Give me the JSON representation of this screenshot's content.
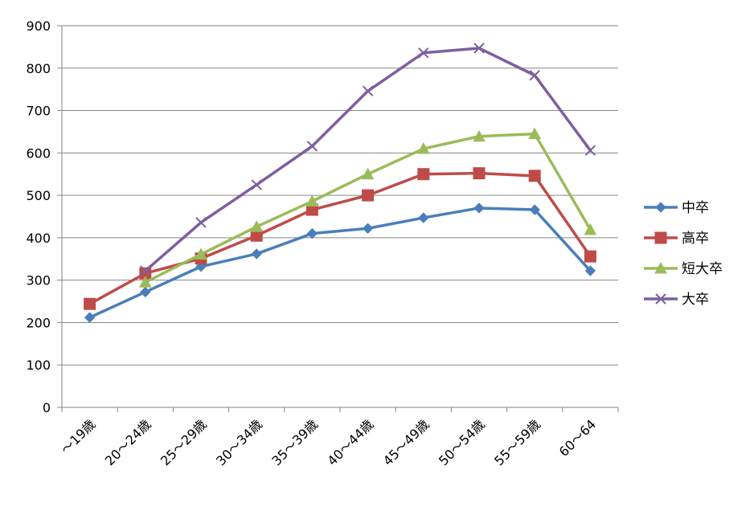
{
  "chart_data": {
    "type": "line",
    "title": "",
    "xlabel": "",
    "ylabel": "",
    "categories": [
      "～19歳",
      "20～24歳",
      "25～29歳",
      "30～34歳",
      "35～39歳",
      "40～44歳",
      "45～49歳",
      "50～54歳",
      "55～59歳",
      "60～64"
    ],
    "ylim": [
      0,
      900
    ],
    "yticks": [
      0,
      100,
      200,
      300,
      400,
      500,
      600,
      700,
      800,
      900
    ],
    "grid": "horizontal",
    "legend_position": "right",
    "series": [
      {
        "name": "中卒",
        "color": "#4A7EBB",
        "marker": "diamond",
        "values": [
          212,
          272,
          332,
          362,
          410,
          422,
          447,
          470,
          466,
          322
        ]
      },
      {
        "name": "高卒",
        "color": "#BE4B48",
        "marker": "square",
        "values": [
          244,
          316,
          351,
          405,
          466,
          500,
          550,
          552,
          546,
          356
        ]
      },
      {
        "name": "短大卒",
        "color": "#9BBB59",
        "marker": "triangle",
        "values": [
          null,
          295,
          361,
          426,
          486,
          550,
          610,
          639,
          645,
          419
        ]
      },
      {
        "name": "大卒",
        "color": "#7D5FA0",
        "marker": "x",
        "values": [
          null,
          322,
          436,
          525,
          616,
          746,
          836,
          847,
          783,
          606
        ]
      }
    ]
  }
}
